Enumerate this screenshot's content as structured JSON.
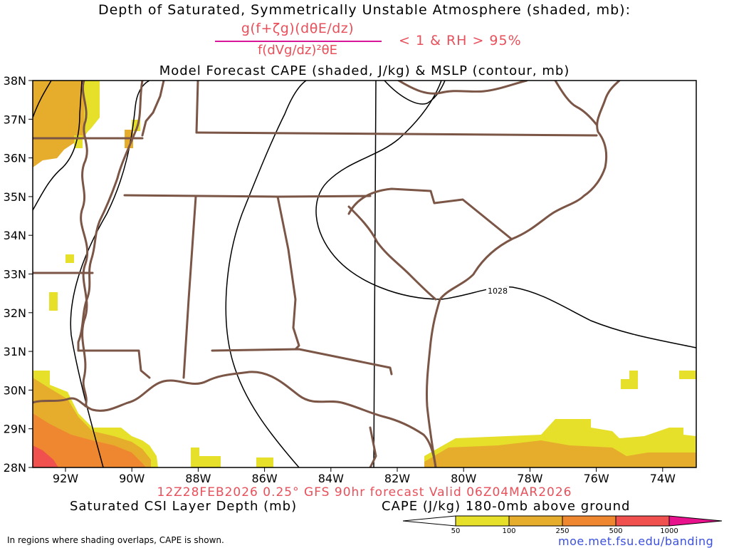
{
  "title": {
    "line1": "Depth of Saturated, Symmetrically Unstable Atmosphere (shaded, mb):",
    "formula_numerator": "g(f+ζg)(dθE/dz)",
    "formula_denominator": "f(dVg/dz)²θE",
    "formula_condition": "< 1 & RH > 95%",
    "line3": "Model Forecast CAPE (shaded, J/kg) & MSLP (contour, mb)"
  },
  "map": {
    "lat_labels": [
      "38N",
      "37N",
      "36N",
      "35N",
      "34N",
      "33N",
      "32N",
      "31N",
      "30N",
      "29N",
      "28N"
    ],
    "lon_labels": [
      "92W",
      "90W",
      "88W",
      "86W",
      "84W",
      "82W",
      "80W",
      "78W",
      "76W",
      "74W"
    ],
    "isobar_label": "1028",
    "colors": {
      "state_borders": "#7b5545",
      "cape_50": "#e6e02a",
      "cape_100": "#e6ad2d",
      "cape_250": "#ef8730",
      "cape_500": "#f0514f",
      "cape_1000": "#e8128d"
    }
  },
  "footer": {
    "valid_line": "12Z28FEB2026 0.25° GFS 90hr forecast Valid 06Z04MAR2026",
    "csi_label": "Saturated CSI Layer Depth (mb)",
    "cape_label": "CAPE (J/kg) 180-0mb above ground",
    "legend_ticks": [
      "50",
      "100",
      "250",
      "500",
      "1000"
    ],
    "footnote": "In regions where shading overlaps, CAPE is shown.",
    "url": "moe.met.fsu.edu/banding"
  }
}
